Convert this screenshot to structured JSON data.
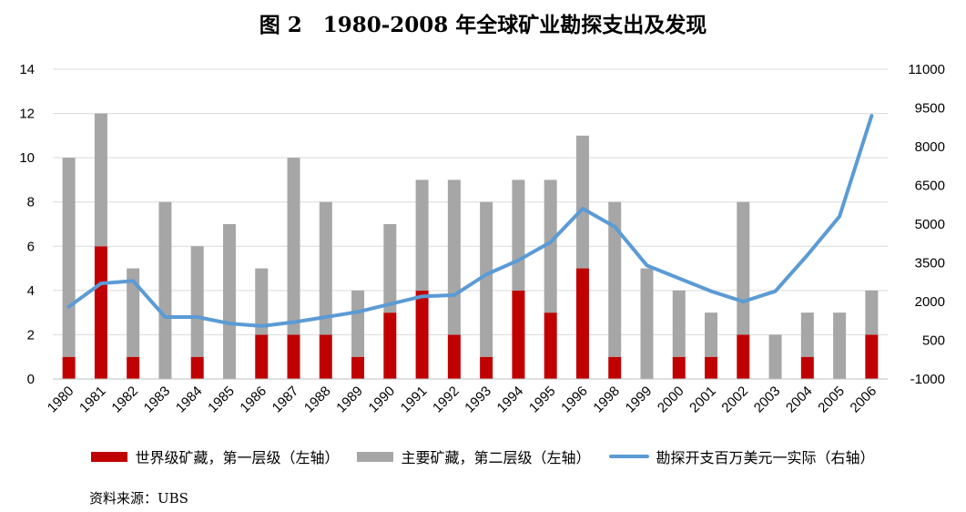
{
  "title": "图 2　1980-2008 年全球矿业勘探支出及发现",
  "source": "资料来源：UBS",
  "colors": {
    "tier1": "#c00000",
    "tier2": "#a6a6a6",
    "line": "#5b9bd5",
    "grid": "#d9d9d9"
  },
  "chart_data": {
    "type": "bar",
    "categories": [
      "1980",
      "1981",
      "1982",
      "1983",
      "1984",
      "1985",
      "1986",
      "1987",
      "1988",
      "1989",
      "1990",
      "1991",
      "1992",
      "1993",
      "1994",
      "1995",
      "1996",
      "1998",
      "1999",
      "2000",
      "2001",
      "2002",
      "2003",
      "2004",
      "2005",
      "2006"
    ],
    "series": [
      {
        "name": "世界级矿藏，第一层级（左轴）",
        "type": "stacked-bar",
        "axis": "left",
        "values": [
          1,
          6,
          1,
          0,
          1,
          0,
          2,
          2,
          2,
          1,
          3,
          4,
          2,
          1,
          4,
          3,
          5,
          1,
          0,
          1,
          1,
          2,
          0,
          1,
          0,
          2
        ]
      },
      {
        "name": "主要矿藏，第二层级（左轴）",
        "type": "stacked-bar",
        "axis": "left",
        "values": [
          9,
          6,
          4,
          8,
          5,
          7,
          3,
          8,
          6,
          3,
          4,
          5,
          7,
          7,
          5,
          6,
          6,
          7,
          5,
          3,
          2,
          6,
          2,
          2,
          3,
          2
        ]
      },
      {
        "name": "勘探开支百万美元一实际（右轴）",
        "type": "line",
        "axis": "right",
        "values": [
          1800,
          2700,
          2800,
          1400,
          1400,
          1150,
          1050,
          1200,
          1400,
          1600,
          1900,
          2200,
          2250,
          3050,
          3600,
          4300,
          5600,
          4900,
          3400,
          2900,
          2400,
          2000,
          2400,
          3800,
          5300,
          9200
        ]
      }
    ],
    "y_left": {
      "min": 0,
      "max": 14,
      "ticks": [
        "0",
        "2",
        "4",
        "6",
        "8",
        "10",
        "12",
        "14"
      ]
    },
    "y_right": {
      "min": -1000,
      "max": 11000,
      "ticks": [
        "-1000",
        "500",
        "2000",
        "3500",
        "5000",
        "6500",
        "8000",
        "9500",
        "11000"
      ]
    },
    "grid": true,
    "legend_position": "bottom"
  }
}
